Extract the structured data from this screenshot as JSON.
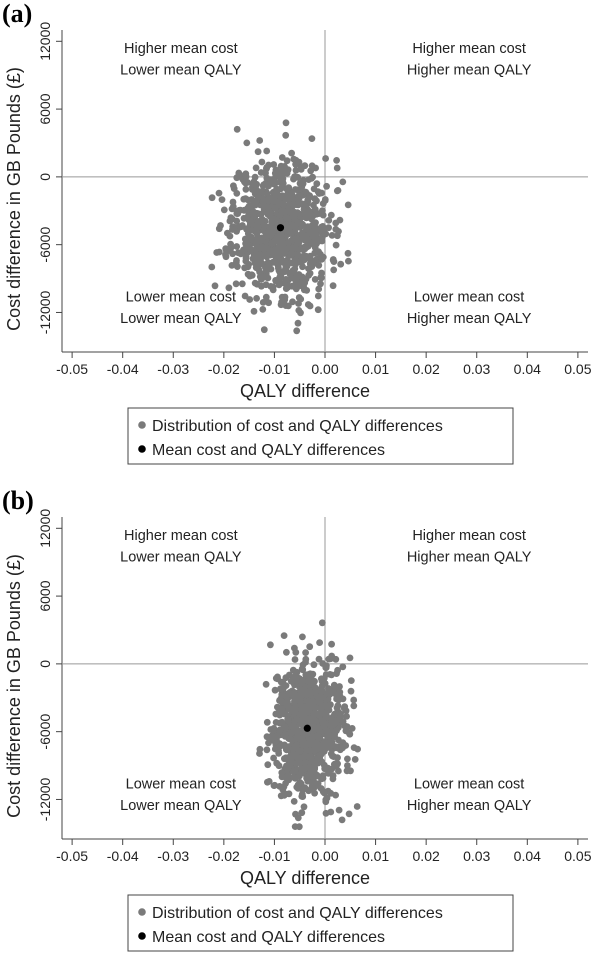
{
  "colors": {
    "point": "#7a7a7a",
    "mean": "#000000",
    "axis": "#444444",
    "refline": "#999999"
  },
  "chart_data": [
    {
      "panel_label": "(a)",
      "type": "scatter",
      "xlabel": "QALY difference",
      "ylabel": "Cost difference in GB Pounds (£)",
      "xlim": [
        -0.052,
        0.052
      ],
      "ylim": [
        -15500,
        13000
      ],
      "x_ticks": [
        -0.05,
        -0.04,
        -0.03,
        -0.02,
        -0.01,
        0.0,
        0.01,
        0.02,
        0.03,
        0.04,
        0.05
      ],
      "x_tick_labels": [
        "-0.05",
        "-0.04",
        "-0.03",
        "-0.02",
        "-0.01",
        "0.00",
        "0.01",
        "0.02",
        "0.03",
        "0.04",
        "0.05"
      ],
      "y_ticks": [
        12000,
        6000,
        0,
        -6000,
        -12000
      ],
      "y_tick_labels": [
        "12000",
        "6000",
        "0",
        "-6000",
        "-12000"
      ],
      "grid": false,
      "reference_lines": {
        "x": 0,
        "y": 0
      },
      "quadrant_labels": [
        {
          "x": -0.0285,
          "y": [
            11400,
            9500
          ],
          "lines": [
            "Higher mean cost",
            "Lower mean QALY"
          ]
        },
        {
          "x": 0.0285,
          "y": [
            11400,
            9500
          ],
          "lines": [
            "Higher mean cost",
            "Higher mean QALY"
          ]
        },
        {
          "x": -0.0285,
          "y": [
            -10600,
            -12500
          ],
          "lines": [
            "Lower mean cost",
            "Lower mean QALY"
          ]
        },
        {
          "x": 0.0285,
          "y": [
            -10600,
            -12500
          ],
          "lines": [
            "Lower mean cost",
            "Higher mean QALY"
          ]
        }
      ],
      "mean_point": {
        "x": -0.0088,
        "y": -4500
      },
      "distribution": {
        "n": 900,
        "mean_x": -0.0088,
        "mean_y": -4500,
        "sd_x": 0.0048,
        "sd_y": 3000,
        "x_range": [
          -0.0235,
          0.005
        ],
        "y_range": [
          -15300,
          7200
        ],
        "seed": 11
      },
      "legend": {
        "placement": "bottom",
        "entries": [
          "Distribution of cost and QALY differences",
          "Mean cost and QALY differences"
        ]
      }
    },
    {
      "panel_label": "(b)",
      "type": "scatter",
      "xlabel": "QALY difference",
      "ylabel": "Cost difference in GB Pounds (£)",
      "xlim": [
        -0.052,
        0.052
      ],
      "ylim": [
        -15500,
        13000
      ],
      "x_ticks": [
        -0.05,
        -0.04,
        -0.03,
        -0.02,
        -0.01,
        0.0,
        0.01,
        0.02,
        0.03,
        0.04,
        0.05
      ],
      "x_tick_labels": [
        "-0.05",
        "-0.04",
        "-0.03",
        "-0.02",
        "-0.01",
        "0.00",
        "0.01",
        "0.02",
        "0.03",
        "0.04",
        "0.05"
      ],
      "y_ticks": [
        12000,
        6000,
        0,
        -6000,
        -12000
      ],
      "y_tick_labels": [
        "12000",
        "6000",
        "0",
        "-6000",
        "-12000"
      ],
      "grid": false,
      "reference_lines": {
        "x": 0,
        "y": 0
      },
      "quadrant_labels": [
        {
          "x": -0.0285,
          "y": [
            11400,
            9500
          ],
          "lines": [
            "Higher mean cost",
            "Lower mean QALY"
          ]
        },
        {
          "x": 0.0285,
          "y": [
            11400,
            9500
          ],
          "lines": [
            "Higher mean cost",
            "Higher mean QALY"
          ]
        },
        {
          "x": -0.0285,
          "y": [
            -10600,
            -12500
          ],
          "lines": [
            "Lower mean cost",
            "Lower mean QALY"
          ]
        },
        {
          "x": 0.0285,
          "y": [
            -10600,
            -12500
          ],
          "lines": [
            "Lower mean cost",
            "Higher mean QALY"
          ]
        }
      ],
      "mean_point": {
        "x": -0.0035,
        "y": -5700
      },
      "distribution": {
        "n": 900,
        "mean_x": -0.0035,
        "mean_y": -5700,
        "sd_x": 0.0035,
        "sd_y": 2900,
        "x_range": [
          -0.0155,
          0.0085
        ],
        "y_range": [
          -14800,
          3800
        ],
        "seed": 29
      },
      "legend": {
        "placement": "bottom",
        "entries": [
          "Distribution of cost and QALY differences",
          "Mean cost and QALY differences"
        ]
      }
    }
  ]
}
